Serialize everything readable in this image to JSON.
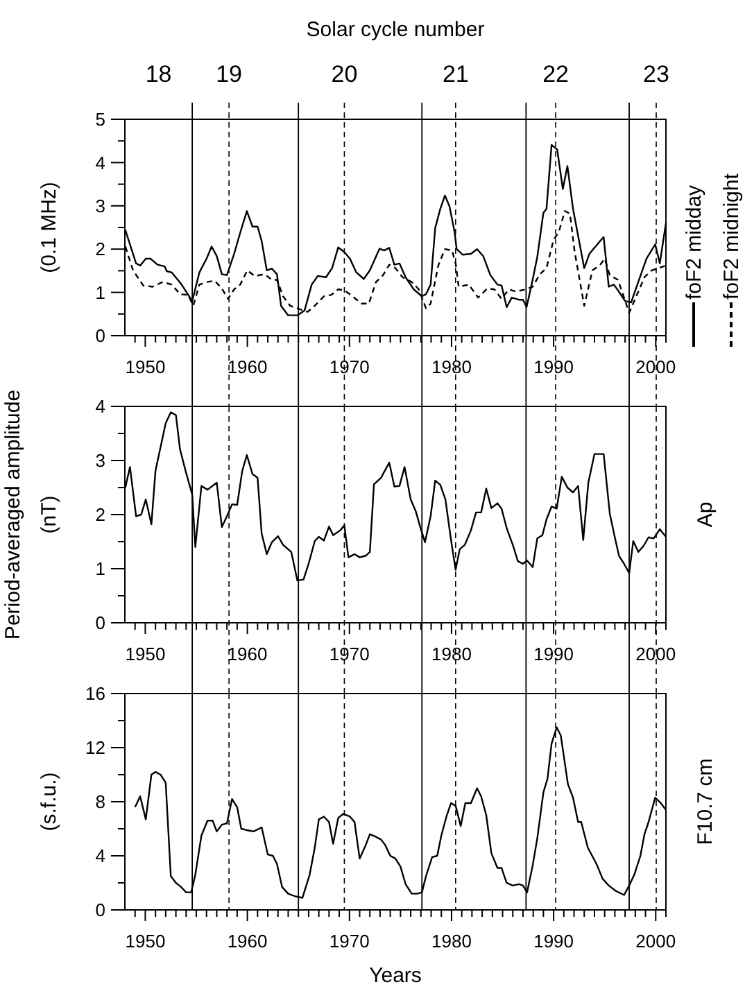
{
  "chart_data": [
    {
      "type": "line",
      "title": "Solar cycle number",
      "annotations": [
        "18",
        "19",
        "20",
        "21",
        "22",
        "23"
      ],
      "ylabel": "(0.1 MHz)",
      "xlim": [
        1948,
        2001
      ],
      "xticks": [
        {
          "value": 1949,
          "label": null
        },
        1950,
        {
          "value": 1951,
          "label": null
        },
        {
          "value": 1952,
          "label": null
        },
        {
          "value": 1953,
          "label": null
        },
        {
          "value": 1954,
          "label": null
        },
        {
          "value": 1955,
          "label": null
        },
        {
          "value": 1956,
          "label": null
        },
        {
          "value": 1957,
          "label": null
        },
        {
          "value": 1958,
          "label": null
        },
        {
          "value": 1959,
          "label": null
        },
        1960,
        {
          "value": 1961,
          "label": null
        },
        {
          "value": 1962,
          "label": null
        },
        {
          "value": 1963,
          "label": null
        },
        {
          "value": 1964,
          "label": null
        },
        {
          "value": 1965,
          "label": null
        },
        {
          "value": 1966,
          "label": null
        },
        {
          "value": 1967,
          "label": null
        },
        {
          "value": 1968,
          "label": null
        },
        {
          "value": 1969,
          "label": null
        },
        1970,
        {
          "value": 1971,
          "label": null
        },
        {
          "value": 1972,
          "label": null
        },
        {
          "value": 1973,
          "label": null
        },
        {
          "value": 1974,
          "label": null
        },
        {
          "value": 1975,
          "label": null
        },
        {
          "value": 1976,
          "label": null
        },
        {
          "value": 1977,
          "label": null
        },
        {
          "value": 1978,
          "label": null
        },
        {
          "value": 1979,
          "label": null
        },
        1980,
        {
          "value": 1981,
          "label": null
        },
        {
          "value": 1982,
          "label": null
        },
        {
          "value": 1983,
          "label": null
        },
        {
          "value": 1984,
          "label": null
        },
        {
          "value": 1985,
          "label": null
        },
        {
          "value": 1986,
          "label": null
        },
        {
          "value": 1987,
          "label": null
        },
        {
          "value": 1988,
          "label": null
        },
        {
          "value": 1989,
          "label": null
        },
        1990,
        {
          "value": 1991,
          "label": null
        },
        {
          "value": 1992,
          "label": null
        },
        {
          "value": 1993,
          "label": null
        },
        {
          "value": 1994,
          "label": null
        },
        {
          "value": 1995,
          "label": null
        },
        {
          "value": 1996,
          "label": null
        },
        {
          "value": 1997,
          "label": null
        },
        {
          "value": 1998,
          "label": null
        },
        {
          "value": 1999,
          "label": null
        },
        2000,
        {
          "value": 2001,
          "label": null
        }
      ],
      "ylim": [
        0,
        5
      ],
      "yticks": [
        0,
        {
          "value": 0.5,
          "label": null
        },
        1,
        {
          "value": 1.5,
          "label": null
        },
        2,
        {
          "value": 2.5,
          "label": null
        },
        3,
        {
          "value": 3.5,
          "label": null
        },
        4,
        {
          "value": 4.5,
          "label": null
        },
        5
      ],
      "legend": "right",
      "series": [
        {
          "name": "foF2 midday",
          "color": "#000000",
          "line_style": "solid",
          "x": [
            1948.05,
            1949.1,
            1949.5,
            1950.05,
            1950.5,
            1951.2,
            1951.9,
            1952.1,
            1952.6,
            1953.5,
            1954.6,
            1955.3,
            1956,
            1956.5,
            1957,
            1957.5,
            1958,
            1958.7,
            1959.3,
            1959.95,
            1960.5,
            1961,
            1961.4,
            1961.9,
            1962.4,
            1962.9,
            1963.3,
            1964,
            1964.9,
            1965.6,
            1966.3,
            1966.9,
            1967.7,
            1968.3,
            1968.9,
            1969.5,
            1970.05,
            1970.65,
            1971.4,
            1972,
            1972.95,
            1973.4,
            1973.9,
            1974.4,
            1974.9,
            1975.5,
            1976.3,
            1977.1,
            1977.5,
            1977.95,
            1978.4,
            1978.9,
            1979.35,
            1979.8,
            1980.3,
            1980.5,
            1981.1,
            1981.9,
            1982.5,
            1983.1,
            1983.8,
            1984.5,
            1984.9,
            1985.4,
            1985.9,
            1986.6,
            1987,
            1987.35,
            1987.9,
            1988.4,
            1989,
            1989.3,
            1989.8,
            1990.35,
            1990.9,
            1991.35,
            1991.9,
            1993,
            1993.5,
            1994.5,
            1994.9,
            1995.4,
            1995.9,
            1996.3,
            1997,
            1997.6,
            1998.2,
            1999.1,
            1999.95,
            2000.4,
            2001
          ],
          "values": [
            2.44,
            1.67,
            1.62,
            1.78,
            1.78,
            1.64,
            1.6,
            1.49,
            1.46,
            1.2,
            0.8,
            1.46,
            1.78,
            2.06,
            1.84,
            1.42,
            1.4,
            1.89,
            2.38,
            2.88,
            2.52,
            2.52,
            2.19,
            1.51,
            1.55,
            1.42,
            0.69,
            0.47,
            0.47,
            0.58,
            1.18,
            1.38,
            1.35,
            1.56,
            2.04,
            1.93,
            1.78,
            1.47,
            1.31,
            1.51,
            2.01,
            1.97,
            2.03,
            1.64,
            1.67,
            1.35,
            1.07,
            0.91,
            0.96,
            1.18,
            2.49,
            2.93,
            3.24,
            2.99,
            2.39,
            2.0,
            1.87,
            1.89,
            2.0,
            1.84,
            1.4,
            1.18,
            1.16,
            0.66,
            0.88,
            0.83,
            0.83,
            0.66,
            1.24,
            1.82,
            2.84,
            2.93,
            4.41,
            4.3,
            3.39,
            3.92,
            2.93,
            1.56,
            1.89,
            2.17,
            2.28,
            1.13,
            1.18,
            1.05,
            0.8,
            0.77,
            1.18,
            1.78,
            2.11,
            1.67,
            2.6
          ]
        },
        {
          "name": "foF2 midnight",
          "color": "#000000",
          "line_style": "dashed",
          "x": [
            1948.05,
            1948.8,
            1949.8,
            1950.7,
            1951.7,
            1952.6,
            1953.4,
            1954.2,
            1954.7,
            1955.3,
            1956,
            1956.8,
            1957.5,
            1958.1,
            1958.7,
            1959.3,
            1960,
            1960.7,
            1961.7,
            1962.4,
            1962.9,
            1963.5,
            1964.2,
            1964.9,
            1965.9,
            1966.6,
            1967.5,
            1968.2,
            1968.9,
            1969.5,
            1970.3,
            1971.2,
            1971.9,
            1972.6,
            1973.3,
            1973.9,
            1974.5,
            1975.2,
            1976.1,
            1976.8,
            1977.5,
            1977.95,
            1978.7,
            1979.35,
            1980.05,
            1980.4,
            1980.7,
            1981.7,
            1982.6,
            1983.5,
            1984.2,
            1984.9,
            1985.6,
            1986.3,
            1987.3,
            1987.95,
            1988.65,
            1989.3,
            1990,
            1990.5,
            1991.1,
            1991.6,
            1992.05,
            1993,
            1993.8,
            1994.5,
            1995,
            1995.5,
            1996.3,
            1996.9,
            1997.4,
            1998.1,
            1998.9,
            1999.6,
            2000.3,
            2001
          ],
          "values": [
            2.06,
            1.51,
            1.16,
            1.13,
            1.24,
            1.18,
            0.96,
            0.94,
            0.69,
            1.18,
            1.24,
            1.27,
            1.09,
            0.85,
            1.07,
            1.18,
            1.51,
            1.38,
            1.42,
            1.29,
            1.29,
            0.91,
            0.69,
            0.63,
            0.55,
            0.69,
            0.91,
            0.94,
            1.07,
            1.05,
            0.91,
            0.74,
            0.74,
            1.24,
            1.4,
            1.64,
            1.56,
            1.35,
            1.24,
            1.07,
            0.63,
            0.74,
            1.62,
            2.0,
            1.97,
            1.67,
            1.13,
            1.18,
            0.88,
            1.09,
            1.07,
            0.85,
            1.07,
            1.02,
            1.07,
            1.13,
            1.42,
            1.56,
            2.22,
            2.39,
            2.88,
            2.82,
            1.95,
            0.69,
            1.51,
            1.62,
            1.78,
            1.4,
            1.29,
            0.88,
            0.53,
            0.91,
            1.35,
            1.51,
            1.56,
            1.62
          ]
        }
      ],
      "ref_lines": [
        {
          "axis": "x",
          "value": 1954.6,
          "line_style": "solid"
        },
        {
          "axis": "x",
          "value": 1965.0,
          "line_style": "solid"
        },
        {
          "axis": "x",
          "value": 1977.1,
          "line_style": "solid"
        },
        {
          "axis": "x",
          "value": 1987.3,
          "line_style": "solid"
        },
        {
          "axis": "x",
          "value": 1997.4,
          "line_style": "solid"
        },
        {
          "axis": "x",
          "value": 1958.2,
          "line_style": "dashed"
        },
        {
          "axis": "x",
          "value": 1969.5,
          "line_style": "dashed"
        },
        {
          "axis": "x",
          "value": 1980.4,
          "line_style": "dashed"
        },
        {
          "axis": "x",
          "value": 1990.2,
          "line_style": "dashed"
        },
        {
          "axis": "x",
          "value": 2000.05,
          "line_style": "dashed"
        }
      ]
    },
    {
      "type": "line",
      "ylabel": "(nT)",
      "y2label": "Ap",
      "annotations": [
        "Period-averaged amplitude"
      ],
      "xlim": [
        1948,
        2001
      ],
      "xticks": [
        {
          "value": 1949,
          "label": null
        },
        1950,
        {
          "value": 1951,
          "label": null
        },
        {
          "value": 1952,
          "label": null
        },
        {
          "value": 1953,
          "label": null
        },
        {
          "value": 1954,
          "label": null
        },
        {
          "value": 1955,
          "label": null
        },
        {
          "value": 1956,
          "label": null
        },
        {
          "value": 1957,
          "label": null
        },
        {
          "value": 1958,
          "label": null
        },
        {
          "value": 1959,
          "label": null
        },
        1960,
        {
          "value": 1961,
          "label": null
        },
        {
          "value": 1962,
          "label": null
        },
        {
          "value": 1963,
          "label": null
        },
        {
          "value": 1964,
          "label": null
        },
        {
          "value": 1965,
          "label": null
        },
        {
          "value": 1966,
          "label": null
        },
        {
          "value": 1967,
          "label": null
        },
        {
          "value": 1968,
          "label": null
        },
        {
          "value": 1969,
          "label": null
        },
        1970,
        {
          "value": 1971,
          "label": null
        },
        {
          "value": 1972,
          "label": null
        },
        {
          "value": 1973,
          "label": null
        },
        {
          "value": 1974,
          "label": null
        },
        {
          "value": 1975,
          "label": null
        },
        {
          "value": 1976,
          "label": null
        },
        {
          "value": 1977,
          "label": null
        },
        {
          "value": 1978,
          "label": null
        },
        {
          "value": 1979,
          "label": null
        },
        1980,
        {
          "value": 1981,
          "label": null
        },
        {
          "value": 1982,
          "label": null
        },
        {
          "value": 1983,
          "label": null
        },
        {
          "value": 1984,
          "label": null
        },
        {
          "value": 1985,
          "label": null
        },
        {
          "value": 1986,
          "label": null
        },
        {
          "value": 1987,
          "label": null
        },
        {
          "value": 1988,
          "label": null
        },
        {
          "value": 1989,
          "label": null
        },
        1990,
        {
          "value": 1991,
          "label": null
        },
        {
          "value": 1992,
          "label": null
        },
        {
          "value": 1993,
          "label": null
        },
        {
          "value": 1994,
          "label": null
        },
        {
          "value": 1995,
          "label": null
        },
        {
          "value": 1996,
          "label": null
        },
        {
          "value": 1997,
          "label": null
        },
        {
          "value": 1998,
          "label": null
        },
        {
          "value": 1999,
          "label": null
        },
        2000,
        {
          "value": 2001,
          "label": null
        }
      ],
      "ylim": [
        0,
        4
      ],
      "yticks": [
        0,
        {
          "value": 0.5,
          "label": null
        },
        1,
        {
          "value": 1.5,
          "label": null
        },
        2,
        {
          "value": 2.5,
          "label": null
        },
        3,
        {
          "value": 3.5,
          "label": null
        },
        4
      ],
      "series": [
        {
          "color": "#000000",
          "line_style": "solid",
          "x": [
            1948.05,
            1948.5,
            1949.1,
            1949.6,
            1950.05,
            1950.6,
            1951,
            1951.5,
            1952,
            1952.5,
            1953,
            1953.4,
            1954,
            1954.6,
            1954.9,
            1955.5,
            1956.1,
            1957,
            1957.5,
            1958,
            1958.5,
            1959,
            1959.5,
            1959.95,
            1960.5,
            1961,
            1961.4,
            1961.9,
            1962.4,
            1963,
            1963.5,
            1964.3,
            1964.9,
            1965.5,
            1966,
            1966.6,
            1967,
            1967.5,
            1968,
            1968.4,
            1969.1,
            1969.5,
            1969.9,
            1970.5,
            1971,
            1971.6,
            1972,
            1972.4,
            1973.1,
            1973.4,
            1973.9,
            1974.4,
            1974.9,
            1975.4,
            1976,
            1976.5,
            1977,
            1977.4,
            1977.95,
            1978.4,
            1978.9,
            1979.4,
            1979.95,
            1980.4,
            1980.8,
            1981.3,
            1981.9,
            1982.4,
            1982.9,
            1983.4,
            1983.9,
            1984.5,
            1984.9,
            1985.4,
            1986,
            1986.5,
            1987,
            1987.4,
            1987.95,
            1988.4,
            1988.9,
            1989.3,
            1989.8,
            1990.3,
            1990.8,
            1991.35,
            1991.9,
            1992.4,
            1992.9,
            1993.4,
            1994,
            1994.5,
            1994.9,
            1995.5,
            1995.95,
            1996.4,
            1996.9,
            1997.4,
            1997.8,
            1998.3,
            1998.8,
            1999.3,
            1999.8,
            2000.4,
            2001
          ],
          "values": [
            2.5,
            2.88,
            1.97,
            2.0,
            2.28,
            1.82,
            2.81,
            3.25,
            3.69,
            3.89,
            3.84,
            3.21,
            2.77,
            2.37,
            1.4,
            2.53,
            2.46,
            2.59,
            1.77,
            1.97,
            2.19,
            2.18,
            2.81,
            3.1,
            2.75,
            2.68,
            1.65,
            1.27,
            1.49,
            1.6,
            1.44,
            1.31,
            0.78,
            0.8,
            1.09,
            1.51,
            1.59,
            1.52,
            1.78,
            1.62,
            1.71,
            1.8,
            1.21,
            1.27,
            1.21,
            1.24,
            1.31,
            2.56,
            2.68,
            2.79,
            2.96,
            2.52,
            2.53,
            2.88,
            2.28,
            2.06,
            1.73,
            1.49,
            1.97,
            2.63,
            2.55,
            2.28,
            1.53,
            0.98,
            1.36,
            1.44,
            1.71,
            2.04,
            2.04,
            2.48,
            2.12,
            2.21,
            2.11,
            1.75,
            1.44,
            1.14,
            1.09,
            1.15,
            1.03,
            1.56,
            1.62,
            1.91,
            2.15,
            2.11,
            2.7,
            2.5,
            2.41,
            2.53,
            1.53,
            2.59,
            3.12,
            3.12,
            3.12,
            2.02,
            1.62,
            1.24,
            1.09,
            0.92,
            1.51,
            1.31,
            1.42,
            1.58,
            1.56,
            1.73,
            1.59
          ]
        }
      ],
      "ref_lines": [
        {
          "axis": "x",
          "value": 1954.6,
          "line_style": "solid"
        },
        {
          "axis": "x",
          "value": 1965.0,
          "line_style": "solid"
        },
        {
          "axis": "x",
          "value": 1977.1,
          "line_style": "solid"
        },
        {
          "axis": "x",
          "value": 1987.3,
          "line_style": "solid"
        },
        {
          "axis": "x",
          "value": 1997.4,
          "line_style": "solid"
        },
        {
          "axis": "x",
          "value": 1958.2,
          "line_style": "dashed"
        },
        {
          "axis": "x",
          "value": 1969.5,
          "line_style": "dashed"
        },
        {
          "axis": "x",
          "value": 1980.4,
          "line_style": "dashed"
        },
        {
          "axis": "x",
          "value": 1990.2,
          "line_style": "dashed"
        },
        {
          "axis": "x",
          "value": 2000.05,
          "line_style": "dashed"
        }
      ]
    },
    {
      "type": "line",
      "ylabel": "(s.f.u.)",
      "y2label": "F10.7 cm",
      "xlabel": "Years",
      "xlim": [
        1948,
        2001
      ],
      "xticks": [
        {
          "value": 1949,
          "label": null
        },
        1950,
        {
          "value": 1951,
          "label": null
        },
        {
          "value": 1952,
          "label": null
        },
        {
          "value": 1953,
          "label": null
        },
        {
          "value": 1954,
          "label": null
        },
        {
          "value": 1955,
          "label": null
        },
        {
          "value": 1956,
          "label": null
        },
        {
          "value": 1957,
          "label": null
        },
        {
          "value": 1958,
          "label": null
        },
        {
          "value": 1959,
          "label": null
        },
        1960,
        {
          "value": 1961,
          "label": null
        },
        {
          "value": 1962,
          "label": null
        },
        {
          "value": 1963,
          "label": null
        },
        {
          "value": 1964,
          "label": null
        },
        {
          "value": 1965,
          "label": null
        },
        {
          "value": 1966,
          "label": null
        },
        {
          "value": 1967,
          "label": null
        },
        {
          "value": 1968,
          "label": null
        },
        {
          "value": 1969,
          "label": null
        },
        1970,
        {
          "value": 1971,
          "label": null
        },
        {
          "value": 1972,
          "label": null
        },
        {
          "value": 1973,
          "label": null
        },
        {
          "value": 1974,
          "label": null
        },
        {
          "value": 1975,
          "label": null
        },
        {
          "value": 1976,
          "label": null
        },
        {
          "value": 1977,
          "label": null
        },
        {
          "value": 1978,
          "label": null
        },
        {
          "value": 1979,
          "label": null
        },
        1980,
        {
          "value": 1981,
          "label": null
        },
        {
          "value": 1982,
          "label": null
        },
        {
          "value": 1983,
          "label": null
        },
        {
          "value": 1984,
          "label": null
        },
        {
          "value": 1985,
          "label": null
        },
        {
          "value": 1986,
          "label": null
        },
        {
          "value": 1987,
          "label": null
        },
        {
          "value": 1988,
          "label": null
        },
        {
          "value": 1989,
          "label": null
        },
        1990,
        {
          "value": 1991,
          "label": null
        },
        {
          "value": 1992,
          "label": null
        },
        {
          "value": 1993,
          "label": null
        },
        {
          "value": 1994,
          "label": null
        },
        {
          "value": 1995,
          "label": null
        },
        {
          "value": 1996,
          "label": null
        },
        {
          "value": 1997,
          "label": null
        },
        {
          "value": 1998,
          "label": null
        },
        {
          "value": 1999,
          "label": null
        },
        2000,
        {
          "value": 2001,
          "label": null
        }
      ],
      "ylim": [
        0,
        16
      ],
      "yticks": [
        0,
        {
          "value": 2,
          "label": null
        },
        4,
        {
          "value": 6,
          "label": null
        },
        8,
        {
          "value": 10,
          "label": null
        },
        12,
        {
          "value": 14,
          "label": null
        },
        16
      ],
      "series": [
        {
          "color": "#000000",
          "line_style": "solid",
          "x": [
            1949,
            1949.5,
            1950.05,
            1950.6,
            1951,
            1951.5,
            1952,
            1952.5,
            1953,
            1953.5,
            1954,
            1954.5,
            1954.9,
            1955.5,
            1956.1,
            1956.6,
            1957,
            1957.5,
            1958,
            1958.5,
            1959,
            1959.4,
            1959.95,
            1960.6,
            1961.4,
            1962,
            1962.5,
            1962.9,
            1963.4,
            1964,
            1964.7,
            1965.4,
            1966.1,
            1966.6,
            1967,
            1967.5,
            1968,
            1968.4,
            1968.9,
            1969.4,
            1970.05,
            1970.5,
            1971,
            1971.6,
            1972,
            1972.6,
            1973.1,
            1973.5,
            1974,
            1974.5,
            1975,
            1975.5,
            1976.1,
            1976.65,
            1977.1,
            1977.5,
            1978.1,
            1978.6,
            1979,
            1979.5,
            1979.95,
            1980.4,
            1980.9,
            1981.35,
            1981.9,
            1982.5,
            1982.9,
            1983.4,
            1983.9,
            1984.5,
            1984.9,
            1985.4,
            1986,
            1986.6,
            1987,
            1987.4,
            1987.95,
            1988.4,
            1989,
            1989.4,
            1989.8,
            1990.3,
            1990.7,
            1991.4,
            1991.9,
            1992.4,
            1992.7,
            1993.35,
            1994.2,
            1994.8,
            1995.4,
            1996.1,
            1996.9,
            1997.4,
            1997.9,
            1998.5,
            1998.9,
            1999.3,
            1999.95,
            2000.5,
            2001
          ],
          "values": [
            7.6,
            8.4,
            6.7,
            10.0,
            10.2,
            10.0,
            9.4,
            2.5,
            2.0,
            1.7,
            1.3,
            1.3,
            2.6,
            5.5,
            6.6,
            6.6,
            5.8,
            6.3,
            6.4,
            8.2,
            7.6,
            6.0,
            5.9,
            5.8,
            6.1,
            4.1,
            4.0,
            3.4,
            1.7,
            1.2,
            1.0,
            0.9,
            2.6,
            4.6,
            6.7,
            6.9,
            6.5,
            4.9,
            6.8,
            7.1,
            6.9,
            6.5,
            3.8,
            4.8,
            5.6,
            5.4,
            5.2,
            4.8,
            4.0,
            3.8,
            3.2,
            1.9,
            1.2,
            1.2,
            1.3,
            2.5,
            3.9,
            4.0,
            5.5,
            6.9,
            7.9,
            7.7,
            6.2,
            7.9,
            7.9,
            9.0,
            8.4,
            7.0,
            4.2,
            3.1,
            3.1,
            2.0,
            1.8,
            1.9,
            1.8,
            1.3,
            3.3,
            5.3,
            8.7,
            9.7,
            12.3,
            13.5,
            12.9,
            9.3,
            8.3,
            6.5,
            6.5,
            4.6,
            3.4,
            2.3,
            1.8,
            1.4,
            1.1,
            1.8,
            2.6,
            4.0,
            5.6,
            6.5,
            8.3,
            7.9,
            7.4
          ]
        }
      ],
      "ref_lines": [
        {
          "axis": "x",
          "value": 1954.6,
          "line_style": "solid"
        },
        {
          "axis": "x",
          "value": 1965.0,
          "line_style": "solid"
        },
        {
          "axis": "x",
          "value": 1977.1,
          "line_style": "solid"
        },
        {
          "axis": "x",
          "value": 1987.3,
          "line_style": "solid"
        },
        {
          "axis": "x",
          "value": 1997.4,
          "line_style": "solid"
        },
        {
          "axis": "x",
          "value": 1958.2,
          "line_style": "dashed"
        },
        {
          "axis": "x",
          "value": 1969.5,
          "line_style": "dashed"
        },
        {
          "axis": "x",
          "value": 1980.4,
          "line_style": "dashed"
        },
        {
          "axis": "x",
          "value": 1990.2,
          "line_style": "dashed"
        },
        {
          "axis": "x",
          "value": 2000.05,
          "line_style": "dashed"
        }
      ]
    }
  ]
}
